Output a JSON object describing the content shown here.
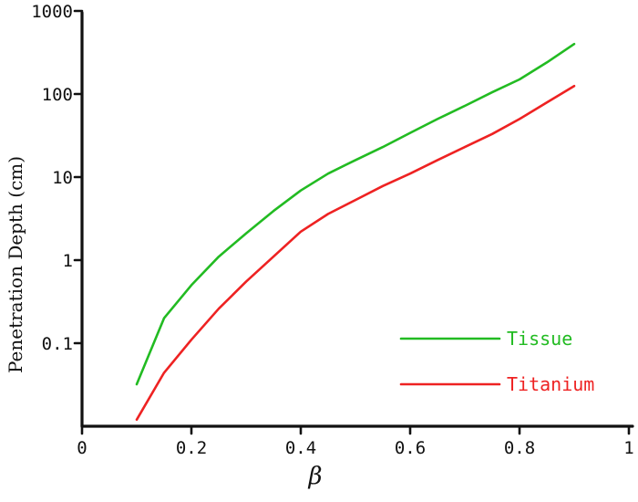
{
  "chart_data": {
    "type": "line",
    "title": "",
    "xlabel": "β",
    "ylabel": "Penetration Depth (cm)",
    "x_scale": "linear",
    "y_scale": "log",
    "xlim": [
      0,
      1
    ],
    "ylim": [
      0.01,
      1000
    ],
    "x_ticks": [
      0,
      0.2,
      0.4,
      0.6,
      0.8,
      1
    ],
    "x_tick_labels": [
      "0",
      "0.2",
      "0.4",
      "0.6",
      "0.8",
      "1"
    ],
    "y_ticks": [
      0.1,
      1,
      10,
      100,
      1000
    ],
    "y_tick_labels": [
      "0.1",
      "1",
      "10",
      "100",
      "1000"
    ],
    "grid": false,
    "legend_position": "bottom-right",
    "series": [
      {
        "name": "Tissue",
        "color": "#22bb22",
        "x": [
          0.1,
          0.15,
          0.2,
          0.25,
          0.3,
          0.35,
          0.4,
          0.45,
          0.5,
          0.55,
          0.6,
          0.65,
          0.7,
          0.75,
          0.8,
          0.85,
          0.9
        ],
        "y": [
          0.032,
          0.2,
          0.5,
          1.1,
          2.1,
          3.9,
          6.9,
          11,
          16,
          23,
          34,
          50,
          72,
          105,
          150,
          240,
          400
        ]
      },
      {
        "name": "Titanium",
        "color": "#ee2222",
        "x": [
          0.1,
          0.15,
          0.2,
          0.25,
          0.3,
          0.35,
          0.4,
          0.45,
          0.5,
          0.55,
          0.6,
          0.65,
          0.7,
          0.75,
          0.8,
          0.85,
          0.9
        ],
        "y": [
          0.012,
          0.044,
          0.11,
          0.26,
          0.55,
          1.1,
          2.2,
          3.6,
          5.3,
          7.8,
          11,
          16,
          23,
          33,
          50,
          79,
          125
        ]
      }
    ]
  }
}
